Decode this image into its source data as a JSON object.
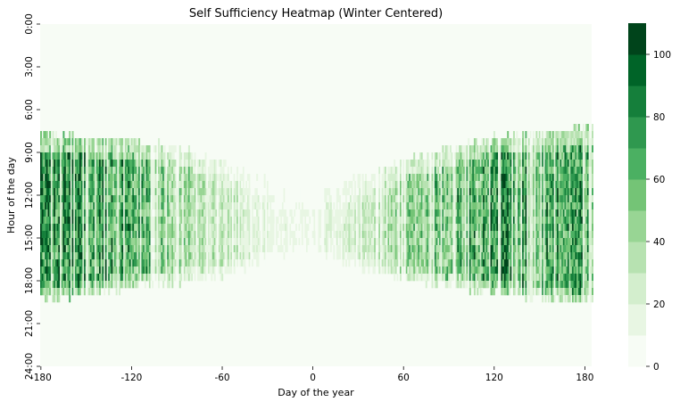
{
  "chart_data": {
    "type": "heatmap",
    "title": "Self Sufficiency Heatmap (Winter Centered)",
    "xlabel": "Day of the year",
    "ylabel": "Hour of the day",
    "x_range": [
      -180,
      185
    ],
    "y_range": [
      0,
      24
    ],
    "x_ticks": [
      {
        "value": -180,
        "label": "-180"
      },
      {
        "value": -120,
        "label": "-120"
      },
      {
        "value": -60,
        "label": "-60"
      },
      {
        "value": 0,
        "label": "0"
      },
      {
        "value": 60,
        "label": "60"
      },
      {
        "value": 120,
        "label": "120"
      },
      {
        "value": 180,
        "label": "180"
      }
    ],
    "y_ticks": [
      {
        "value": 0,
        "label": "0:00"
      },
      {
        "value": 3,
        "label": "3:00"
      },
      {
        "value": 6,
        "label": "6:00"
      },
      {
        "value": 9,
        "label": "9:00"
      },
      {
        "value": 12,
        "label": "12:00"
      },
      {
        "value": 15,
        "label": "15:00"
      },
      {
        "value": 18,
        "label": "18:00"
      },
      {
        "value": 21,
        "label": "21:00"
      },
      {
        "value": 24,
        "label": "24:00"
      }
    ],
    "colorbar": {
      "range": [
        0,
        110
      ],
      "ticks": [
        {
          "value": 0,
          "label": "0"
        },
        {
          "value": 20,
          "label": "20"
        },
        {
          "value": 40,
          "label": "40"
        },
        {
          "value": 60,
          "label": "60"
        },
        {
          "value": 80,
          "label": "80"
        },
        {
          "value": 100,
          "label": "100"
        }
      ],
      "levels": [
        "#f7fcf5",
        "#e8f6e3",
        "#d3eecd",
        "#b7e2b1",
        "#98d594",
        "#74c476",
        "#4bb062",
        "#2f984f",
        "#157f3b",
        "#006428",
        "#00441b"
      ]
    },
    "daylight_profile": {
      "days": [
        -180,
        -150,
        -120,
        -90,
        -60,
        -30,
        -15,
        0,
        15,
        30,
        60,
        90,
        120,
        150,
        185
      ],
      "sunrise_hour": [
        7.9,
        8.1,
        8.3,
        8.9,
        9.9,
        11.3,
        11.8,
        12.0,
        11.8,
        11.1,
        9.9,
        9.0,
        8.2,
        7.8,
        7.5
      ],
      "sunset_hour": [
        18.9,
        18.7,
        18.2,
        17.9,
        17.4,
        16.6,
        16.2,
        16.0,
        16.3,
        16.8,
        17.5,
        18.1,
        18.6,
        19.0,
        19.2
      ],
      "typical_sufficiency": [
        82,
        90,
        70,
        45,
        32,
        18,
        12,
        15,
        20,
        32,
        45,
        62,
        85,
        78,
        70
      ]
    }
  }
}
